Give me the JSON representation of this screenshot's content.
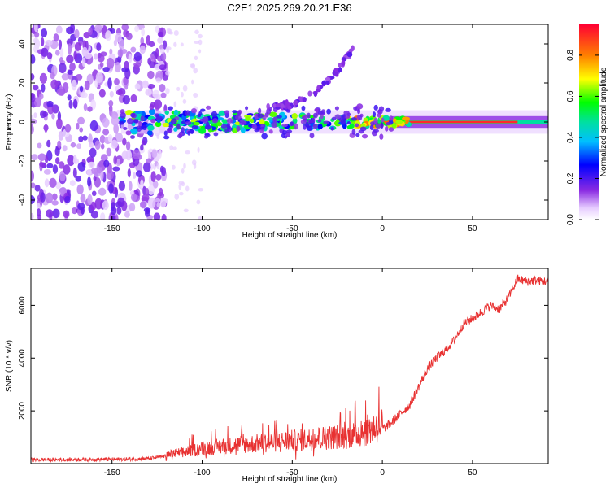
{
  "title": "C2E1.2025.269.20.21.E36",
  "chart_data": [
    {
      "type": "heatmap",
      "name": "spectrogram",
      "xlabel": "Height of straight line (km)",
      "ylabel": "Frequency (Hz)",
      "xlim": [
        -195,
        92
      ],
      "ylim": [
        -50,
        50
      ],
      "xticks": [
        -150,
        -100,
        -50,
        0,
        50
      ],
      "yticks": [
        -40,
        -20,
        0,
        20,
        40
      ],
      "colorbar": {
        "label": "Normalized spectral amplitude",
        "range": [
          0,
          0.95
        ],
        "ticks": [
          0.0,
          0.2,
          0.4,
          0.6,
          0.8
        ],
        "tick_labels": [
          "0.0",
          "0.2",
          "0.4",
          "0.6",
          "0.8"
        ]
      },
      "features": [
        {
          "name": "central carrier line",
          "frequency_hz": 0,
          "height_km_range": [
            -145,
            92
          ],
          "peak_amplitude": 0.95
        },
        {
          "name": "upper sideband",
          "height_km_range": [
            -60,
            -15
          ],
          "frequency_hz_range": [
            8,
            40
          ]
        },
        {
          "name": "noise region",
          "height_km_range": [
            -195,
            -120
          ],
          "frequency_hz_range": [
            -50,
            50
          ],
          "amplitude_range": [
            0.05,
            0.25
          ]
        }
      ]
    },
    {
      "type": "line",
      "name": "snr",
      "xlabel": "Height of straight line (km)",
      "ylabel": "SNR (10 * v/v)",
      "xlim": [
        -195,
        92
      ],
      "ylim": [
        0,
        7400
      ],
      "xticks": [
        -150,
        -100,
        -50,
        0,
        50
      ],
      "yticks": [
        2000,
        4000,
        6000
      ],
      "color": "#e83232",
      "series": [
        {
          "name": "SNR",
          "x": [
            -195,
            -180,
            -160,
            -140,
            -130,
            -120,
            -110,
            -100,
            -90,
            -80,
            -70,
            -60,
            -50,
            -40,
            -30,
            -20,
            -15,
            -10,
            -5,
            0,
            5,
            10,
            15,
            20,
            25,
            30,
            35,
            40,
            45,
            50,
            55,
            60,
            65,
            70,
            75,
            80,
            85,
            92
          ],
          "values": [
            150,
            150,
            160,
            170,
            190,
            280,
            380,
            500,
            560,
            620,
            650,
            700,
            750,
            800,
            850,
            900,
            950,
            1050,
            1150,
            1300,
            1550,
            1900,
            2200,
            2900,
            3600,
            4000,
            4300,
            4700,
            5300,
            5500,
            5750,
            6000,
            5850,
            6300,
            7000,
            6900,
            6950,
            6900
          ]
        }
      ]
    }
  ]
}
